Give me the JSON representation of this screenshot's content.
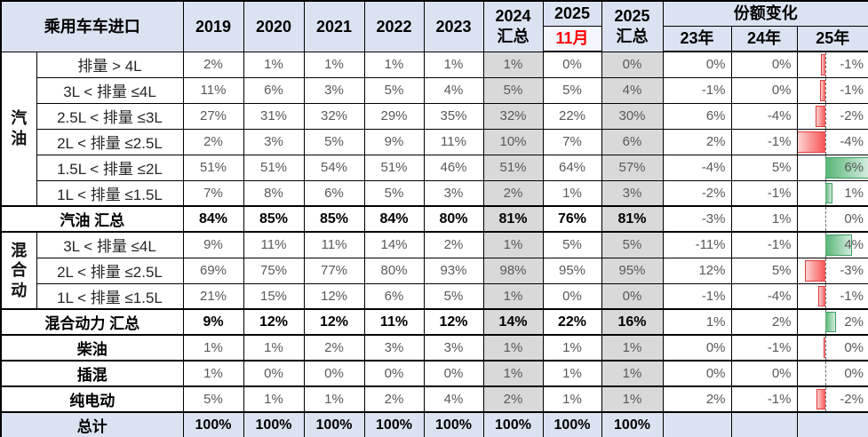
{
  "colors": {
    "header_bg": "#dbe3f2",
    "month_cell_bg": "#f3f6fc",
    "month_text": "#ff0000",
    "gray_column_bg": "#d9d9d9",
    "total_row_bg": "#dbe3f2",
    "value_text": "#595959",
    "negative_bar": "#f85252",
    "positive_bar": "#56b475"
  },
  "header": {
    "table_title": "乘用车车进口",
    "years": [
      "2019",
      "2020",
      "2021",
      "2022",
      "2023"
    ],
    "col_2024_total": [
      "2024",
      "汇总"
    ],
    "col_2025_month": [
      "2025",
      "11月"
    ],
    "col_2025_total": [
      "2025",
      "汇总"
    ],
    "share_change_title": "份额变化",
    "share_years": [
      "23年",
      "24年",
      "25年"
    ]
  },
  "chart_data": {
    "type": "table",
    "value_columns": [
      "2019",
      "2020",
      "2021",
      "2022",
      "2023",
      "2024汇总",
      "2025 11月",
      "2025汇总"
    ],
    "change_columns": [
      "23年",
      "24年",
      "25年"
    ],
    "rows": [
      {
        "group": "汽\n油",
        "group_span": 6,
        "label": "排量 > 4L",
        "values": [
          "2%",
          "1%",
          "1%",
          "1%",
          "1%",
          "1%",
          "0%",
          "0%"
        ],
        "changes": [
          "0%",
          "0%"
        ],
        "change25": "-1%",
        "bar": -0.05,
        "axis": true
      },
      {
        "label": "3L < 排量 ≤4L",
        "values": [
          "11%",
          "6%",
          "3%",
          "5%",
          "4%",
          "5%",
          "5%",
          "4%"
        ],
        "changes": [
          "-1%",
          "0%"
        ],
        "change25": "-1%",
        "bar": -0.07,
        "axis": true
      },
      {
        "label": "2.5L < 排量 ≤3L",
        "values": [
          "27%",
          "31%",
          "32%",
          "29%",
          "35%",
          "32%",
          "22%",
          "30%"
        ],
        "changes": [
          "6%",
          "-4%"
        ],
        "change25": "-2%",
        "bar": -0.13,
        "axis": true
      },
      {
        "label": "2L < 排量 ≤2.5L",
        "values": [
          "2%",
          "3%",
          "5%",
          "9%",
          "11%",
          "10%",
          "7%",
          "6%"
        ],
        "changes": [
          "2%",
          "-1%"
        ],
        "change25": "-4%",
        "bar": -0.4,
        "axis": true
      },
      {
        "label": "1.5L < 排量 ≤2L",
        "values": [
          "51%",
          "51%",
          "54%",
          "51%",
          "46%",
          "51%",
          "64%",
          "57%"
        ],
        "changes": [
          "-4%",
          "5%"
        ],
        "change25": "6%",
        "bar": 0.6,
        "axis": true
      },
      {
        "label": "1L < 排量 ≤1.5L",
        "values": [
          "7%",
          "8%",
          "6%",
          "5%",
          "3%",
          "2%",
          "1%",
          "3%"
        ],
        "changes": [
          "-2%",
          "-1%"
        ],
        "change25": "1%",
        "bar": 0.08,
        "axis": true
      },
      {
        "label": "汽油 汇总",
        "label_colspan": 2,
        "bold_values": true,
        "sep": true,
        "values": [
          "84%",
          "85%",
          "85%",
          "84%",
          "80%",
          "81%",
          "76%",
          "81%"
        ],
        "changes": [
          "-3%",
          "1%"
        ],
        "change25": "0%",
        "bar": 0,
        "axis": true
      },
      {
        "group": "混\n合\n动",
        "group_span": 3,
        "sep": true,
        "label": "3L < 排量 ≤4L",
        "values": [
          "9%",
          "11%",
          "11%",
          "14%",
          "2%",
          "1%",
          "5%",
          "5%"
        ],
        "changes": [
          "-11%",
          "-1%"
        ],
        "change25": "4%",
        "bar": 0.36,
        "axis": true
      },
      {
        "label": "2L < 排量 ≤2.5L",
        "values": [
          "69%",
          "75%",
          "77%",
          "80%",
          "93%",
          "98%",
          "95%",
          "95%"
        ],
        "changes": [
          "12%",
          "5%"
        ],
        "change25": "-3%",
        "bar": -0.28,
        "axis": true
      },
      {
        "label": "1L < 排量 ≤1.5L",
        "values": [
          "21%",
          "15%",
          "12%",
          "6%",
          "5%",
          "1%",
          "0%",
          "0%"
        ],
        "changes": [
          "-1%",
          "-4%"
        ],
        "change25": "-1%",
        "bar": -0.09,
        "axis": true
      },
      {
        "label": "混合动力 汇总",
        "label_colspan": 2,
        "bold_values": true,
        "sep": true,
        "values": [
          "9%",
          "12%",
          "12%",
          "11%",
          "12%",
          "14%",
          "22%",
          "16%"
        ],
        "changes": [
          "1%",
          "2%"
        ],
        "change25": "2%",
        "bar": 0.13,
        "axis": true
      },
      {
        "label": "柴油",
        "label_colspan": 2,
        "sep": true,
        "values": [
          "1%",
          "1%",
          "2%",
          "3%",
          "3%",
          "1%",
          "1%",
          "1%"
        ],
        "changes": [
          "0%",
          "-1%"
        ],
        "change25": "0%",
        "bar": -0.02,
        "axis": true
      },
      {
        "label": "插混",
        "label_colspan": 2,
        "sep": true,
        "values": [
          "1%",
          "0%",
          "0%",
          "0%",
          "0%",
          "1%",
          "1%",
          "1%"
        ],
        "changes": [
          "0%",
          "0%"
        ],
        "change25": "0%",
        "bar": 0,
        "axis": true
      },
      {
        "label": "纯电动",
        "label_colspan": 2,
        "sep": true,
        "values": [
          "5%",
          "1%",
          "1%",
          "2%",
          "4%",
          "2%",
          "1%",
          "1%"
        ],
        "changes": [
          "2%",
          "-1%"
        ],
        "change25": "-2%",
        "bar": -0.12,
        "axis": true
      },
      {
        "label": "总计",
        "label_colspan": 2,
        "bold_values": true,
        "total": true,
        "sep": true,
        "values": [
          "100%",
          "100%",
          "100%",
          "100%",
          "100%",
          "100%",
          "100%",
          "100%"
        ],
        "changes": [
          "",
          ""
        ],
        "change25": "",
        "bar": 0,
        "axis": false
      }
    ]
  }
}
